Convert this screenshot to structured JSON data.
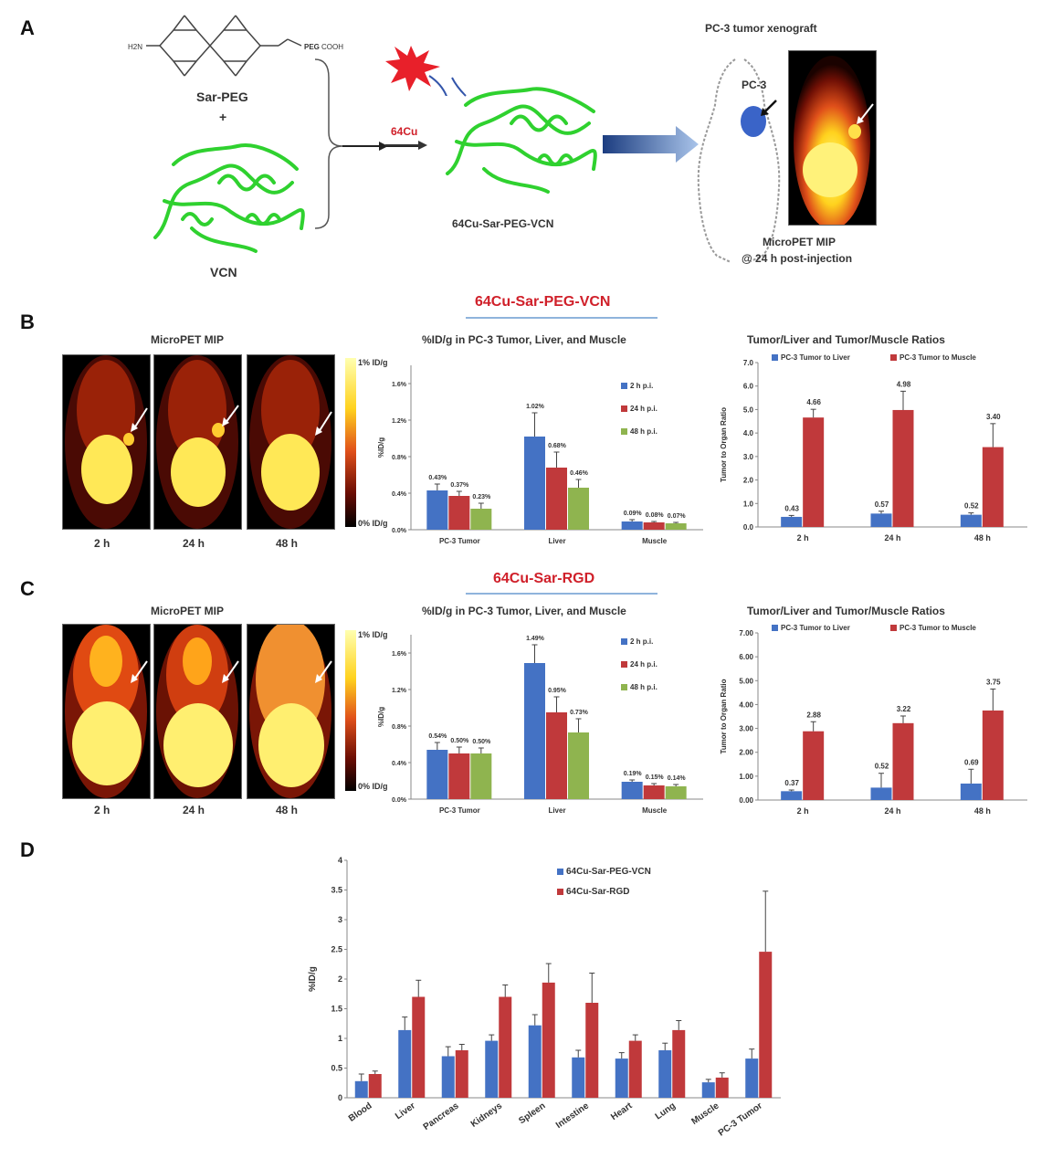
{
  "panels": {
    "A": {
      "letter": "A",
      "sar_peg_label": "Sar-PEG",
      "plus": "+",
      "vcn_label": "VCN",
      "cu_label": "64Cu",
      "product_label": "64Cu-Sar-PEG-VCN",
      "xenograft_title": "PC-3 tumor xenograft",
      "pc3_label": "PC-3",
      "micropet_label": "MicroPET MIP",
      "timepoint_label": "@ 24 h post-injection",
      "molecule_text": {
        "h2n": "H2N",
        "peg": "PEG",
        "cooh": "COOH"
      }
    },
    "B": {
      "letter": "B",
      "compound": "64Cu-Sar-PEG-VCN",
      "mip_title": "MicroPET MIP",
      "scale_top": "1% ID/g",
      "scale_bottom": "0% ID/g",
      "times": [
        "2 h",
        "24 h",
        "48 h"
      ],
      "idg_title": "%ID/g in PC-3 Tumor, Liver, and Muscle",
      "ratio_title": "Tumor/Liver and Tumor/Muscle Ratios"
    },
    "C": {
      "letter": "C",
      "compound": "64Cu-Sar-RGD",
      "mip_title": "MicroPET MIP",
      "scale_top": "1% ID/g",
      "scale_bottom": "0% ID/g",
      "times": [
        "2 h",
        "24 h",
        "48 h"
      ],
      "idg_title": "%ID/g in PC-3 Tumor, Liver, and Muscle",
      "ratio_title": "Tumor/Liver and Tumor/Muscle Ratios"
    },
    "D": {
      "letter": "D"
    }
  },
  "colors": {
    "blue": "#4472c4",
    "red": "#c0393b",
    "green": "#8fb44f",
    "accent_red": "#d0202a"
  },
  "chart_data": [
    {
      "id": "B-idg",
      "type": "bar",
      "ylabel": "%ID/g",
      "ylim": [
        0,
        1.8
      ],
      "yticks": [
        "0.0%",
        "0.4%",
        "0.8%",
        "1.2%",
        "1.6%"
      ],
      "ytick_values": [
        0,
        0.4,
        0.8,
        1.2,
        1.6
      ],
      "categories": [
        "PC-3 Tumor",
        "Liver",
        "Muscle"
      ],
      "legend_position": "top-right",
      "series": [
        {
          "name": "2 h p.i.",
          "values": [
            0.43,
            1.02,
            0.09
          ],
          "errors": [
            0.07,
            0.26,
            0.02
          ],
          "labels": [
            "0.43%",
            "1.02%",
            "0.09%"
          ]
        },
        {
          "name": "24 h p.i.",
          "values": [
            0.37,
            0.68,
            0.08
          ],
          "errors": [
            0.05,
            0.17,
            0.01
          ],
          "labels": [
            "0.37%",
            "0.68%",
            "0.08%"
          ]
        },
        {
          "name": "48 h p.i.",
          "values": [
            0.23,
            0.46,
            0.07
          ],
          "errors": [
            0.06,
            0.09,
            0.01
          ],
          "labels": [
            "0.23%",
            "0.46%",
            "0.07%"
          ]
        }
      ]
    },
    {
      "id": "B-ratio",
      "type": "bar",
      "ylabel": "Tumor to Organ Ratio",
      "ylim": [
        0,
        7.0
      ],
      "yticks": [
        "0.0",
        "1.0",
        "2.0",
        "3.0",
        "4.0",
        "5.0",
        "6.0",
        "7.0"
      ],
      "ytick_values": [
        0,
        1,
        2,
        3,
        4,
        5,
        6,
        7
      ],
      "categories": [
        "2 h",
        "24 h",
        "48 h"
      ],
      "legend_position": "top",
      "series": [
        {
          "name": "PC-3 Tumor to Liver",
          "values": [
            0.43,
            0.57,
            0.52
          ],
          "errors": [
            0.06,
            0.1,
            0.08
          ],
          "labels": [
            "0.43",
            "0.57",
            "0.52"
          ]
        },
        {
          "name": "PC-3 Tumor to Muscle",
          "values": [
            4.66,
            4.98,
            3.4
          ],
          "errors": [
            0.35,
            0.8,
            1.0
          ],
          "labels": [
            "4.66",
            "4.98",
            "3.40"
          ]
        }
      ]
    },
    {
      "id": "C-idg",
      "type": "bar",
      "ylabel": "%ID/g",
      "ylim": [
        0,
        1.8
      ],
      "yticks": [
        "0.0%",
        "0.4%",
        "0.8%",
        "1.2%",
        "1.6%"
      ],
      "ytick_values": [
        0,
        0.4,
        0.8,
        1.2,
        1.6
      ],
      "categories": [
        "PC-3 Tumor",
        "Liver",
        "Muscle"
      ],
      "legend_position": "top-right",
      "series": [
        {
          "name": "2 h p.i.",
          "values": [
            0.54,
            1.49,
            0.19
          ],
          "errors": [
            0.08,
            0.2,
            0.02
          ],
          "labels": [
            "0.54%",
            "1.49%",
            "0.19%"
          ]
        },
        {
          "name": "24 h p.i.",
          "values": [
            0.5,
            0.95,
            0.15
          ],
          "errors": [
            0.07,
            0.17,
            0.02
          ],
          "labels": [
            "0.50%",
            "0.95%",
            "0.15%"
          ]
        },
        {
          "name": "48 h p.i.",
          "values": [
            0.5,
            0.73,
            0.14
          ],
          "errors": [
            0.06,
            0.15,
            0.02
          ],
          "labels": [
            "0.50%",
            "0.73%",
            "0.14%"
          ]
        }
      ]
    },
    {
      "id": "C-ratio",
      "type": "bar",
      "ylabel": "Tumor to Organ Ratio",
      "ylim": [
        0,
        7.0
      ],
      "yticks": [
        "0.00",
        "1.00",
        "2.00",
        "3.00",
        "4.00",
        "5.00",
        "6.00",
        "7.00"
      ],
      "ytick_values": [
        0,
        1,
        2,
        3,
        4,
        5,
        6,
        7
      ],
      "categories": [
        "2 h",
        "24 h",
        "48 h"
      ],
      "legend_position": "top",
      "series": [
        {
          "name": "PC-3 Tumor to Liver",
          "values": [
            0.37,
            0.52,
            0.69
          ],
          "errors": [
            0.05,
            0.6,
            0.6
          ],
          "labels": [
            "0.37",
            "0.52",
            "0.69"
          ]
        },
        {
          "name": "PC-3 Tumor to Muscle",
          "values": [
            2.88,
            3.22,
            3.75
          ],
          "errors": [
            0.4,
            0.3,
            0.9
          ],
          "labels": [
            "2.88",
            "3.22",
            "3.75"
          ]
        }
      ]
    },
    {
      "id": "D-biodist",
      "type": "bar",
      "ylabel": "%ID/g",
      "ylim": [
        0,
        4
      ],
      "yticks": [
        "0",
        "0.5",
        "1",
        "1.5",
        "2",
        "2.5",
        "3",
        "3.5",
        "4"
      ],
      "ytick_values": [
        0,
        0.5,
        1,
        1.5,
        2,
        2.5,
        3,
        3.5,
        4
      ],
      "categories": [
        "Blood",
        "Liver",
        "Pancreas",
        "Kidneys",
        "Spleen",
        "Intestine",
        "Heart",
        "Lung",
        "Muscle",
        "PC-3 Tumor"
      ],
      "legend_position": "top",
      "series": [
        {
          "name": "64Cu-Sar-PEG-VCN",
          "values": [
            0.28,
            1.14,
            0.7,
            0.96,
            1.22,
            0.68,
            0.66,
            0.8,
            0.26,
            0.66
          ],
          "errors": [
            0.12,
            0.22,
            0.16,
            0.1,
            0.18,
            0.12,
            0.1,
            0.12,
            0.05,
            0.16
          ]
        },
        {
          "name": "64Cu-Sar-RGD",
          "values": [
            0.4,
            1.7,
            0.8,
            1.7,
            1.94,
            1.6,
            0.96,
            1.14,
            0.34,
            2.46
          ],
          "errors": [
            0.05,
            0.28,
            0.1,
            0.2,
            0.32,
            0.5,
            0.1,
            0.16,
            0.08,
            1.02
          ]
        }
      ]
    }
  ]
}
